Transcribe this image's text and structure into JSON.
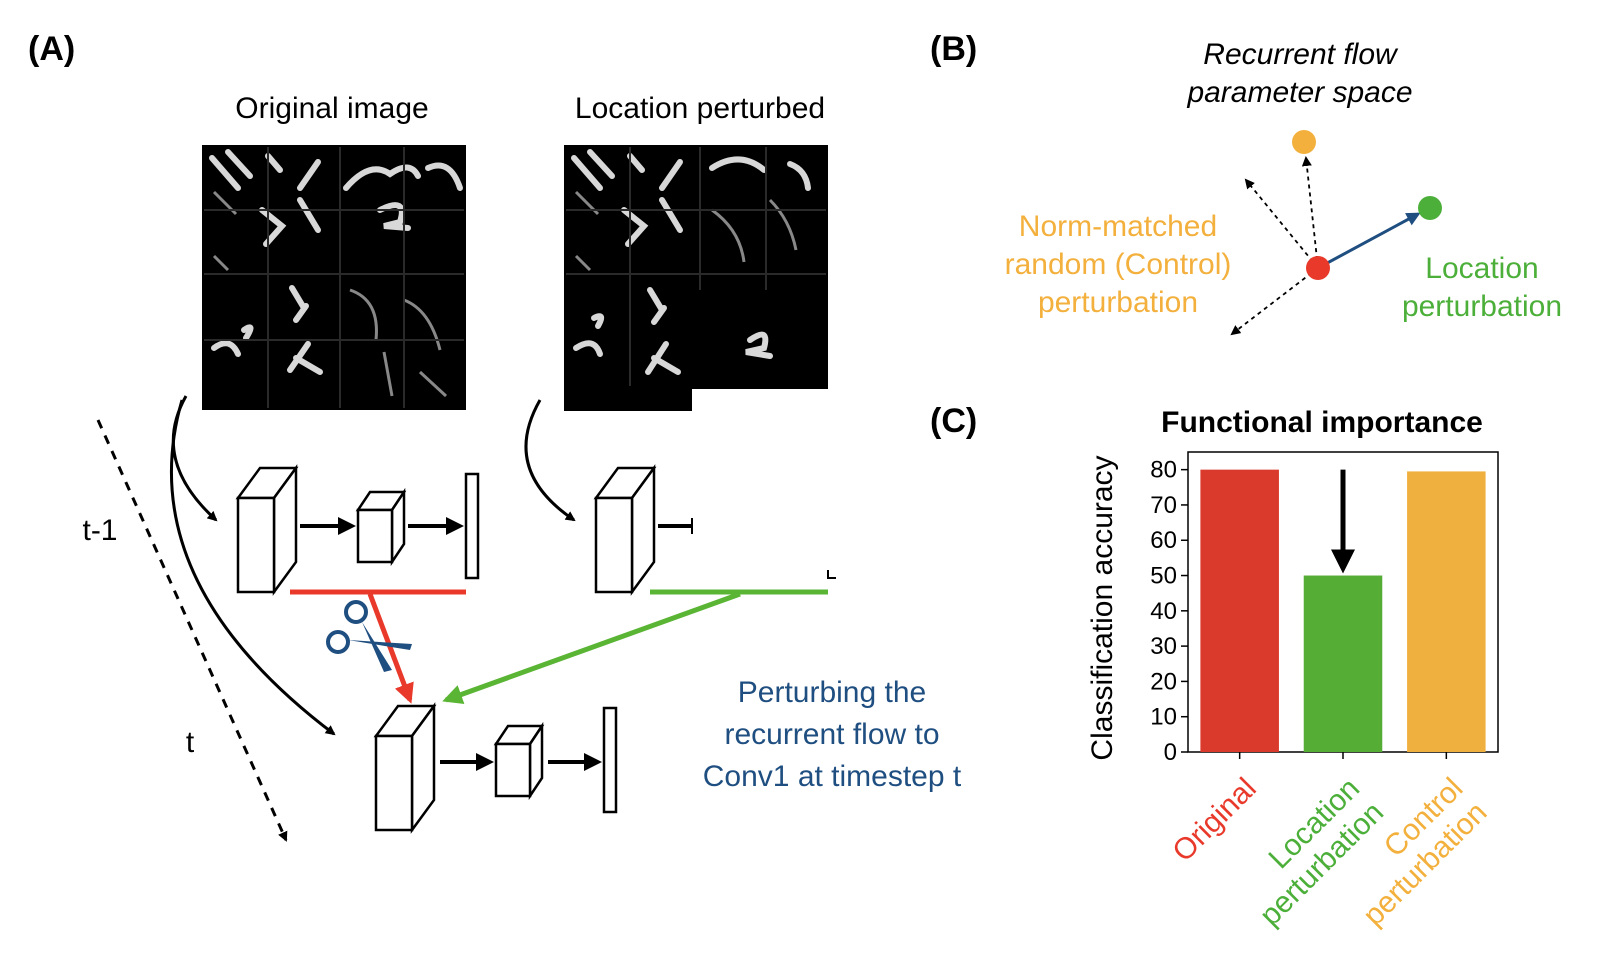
{
  "panels": {
    "a": "(A)",
    "b": "(B)",
    "c": "(C)"
  },
  "panel_a": {
    "original_title": "Original image",
    "perturbed_title": "Location perturbed",
    "time_prev": "t-1",
    "time_curr": "t",
    "caption_lines": [
      "Perturbing the",
      "recurrent flow to",
      "Conv1 at timestep t"
    ],
    "colors": {
      "red_path": "#e8392b",
      "green_path": "#5ab535",
      "caption": "#1f4e80",
      "scissors": "#1f4e80"
    },
    "icons": [
      "scissors-icon"
    ]
  },
  "panel_b": {
    "title_lines": [
      "Recurrent flow",
      "parameter space"
    ],
    "control_lines": [
      "Norm-matched",
      "random (Control)",
      "perturbation"
    ],
    "location_lines": [
      "Location",
      "perturbation"
    ],
    "colors": {
      "origin": "#e8392b",
      "control": "#f3b03d",
      "location": "#4caf3a",
      "arrow": "#1f4e80"
    }
  },
  "chart_data": {
    "type": "bar",
    "title": "Functional importance",
    "xlabel": "",
    "ylabel": "Classification accuracy",
    "categories": [
      "Original",
      "Location perturbation",
      "Control perturbation"
    ],
    "category_lines": [
      [
        "Original"
      ],
      [
        "Location",
        "perturbation"
      ],
      [
        "Control",
        "perturbation"
      ]
    ],
    "values": [
      80,
      50,
      79.5
    ],
    "colors": [
      "#d93a2b",
      "#55ad35",
      "#f0b040"
    ],
    "label_colors": [
      "#e8392b",
      "#4caf3a",
      "#f3b03d"
    ],
    "ylim": [
      0,
      85
    ],
    "yticks": [
      0,
      10,
      20,
      30,
      40,
      50,
      60,
      70,
      80
    ],
    "annotation": "down-arrow over Location perturbation bar",
    "grid": false
  }
}
